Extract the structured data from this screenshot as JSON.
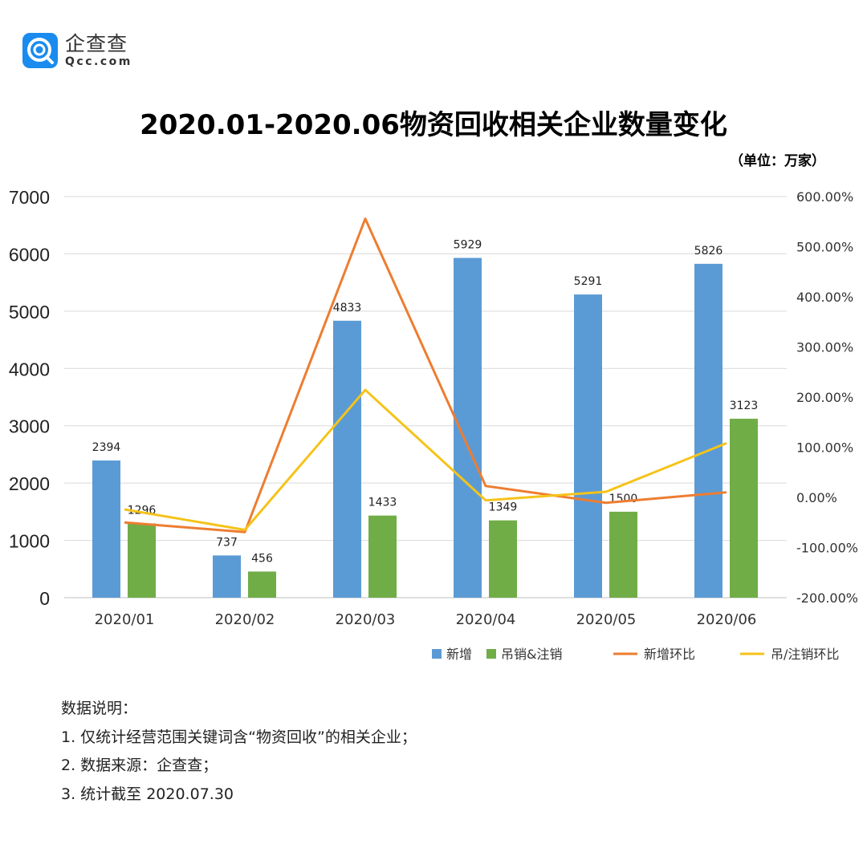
{
  "logo": {
    "cn": "企查查",
    "en": "Qcc.com",
    "color": "#1a8cf0"
  },
  "title": "2020.01-2020.06物资回收相关企业数量变化",
  "unit": "（单位：万家）",
  "chart_data": {
    "type": "bar",
    "title": "2020.01-2020.06物资回收相关企业数量变化",
    "categories": [
      "2020/01",
      "2020/02",
      "2020/03",
      "2020/04",
      "2020/05",
      "2020/06"
    ],
    "y_left": {
      "range": [
        0,
        7000
      ],
      "ticks": [
        "0",
        "1000",
        "2000",
        "3000",
        "4000",
        "5000",
        "6000",
        "7000"
      ]
    },
    "y_right": {
      "range": [
        -200,
        600
      ],
      "ticks": [
        "-200.00%",
        "-100.00%",
        "0.00%",
        "100.00%",
        "200.00%",
        "300.00%",
        "400.00%",
        "500.00%",
        "600.00%"
      ]
    },
    "grid": true,
    "legend_placement": "bottom-right",
    "series": [
      {
        "name": "新增",
        "type": "bar",
        "axis": "left",
        "color": "#5b9bd5",
        "values": [
          2394,
          737,
          4833,
          5929,
          5291,
          5826
        ]
      },
      {
        "name": "吊销&注销",
        "type": "bar",
        "axis": "left",
        "color": "#70ad47",
        "values": [
          1296,
          456,
          1433,
          1349,
          1500,
          3123
        ]
      },
      {
        "name": "新增环比",
        "type": "line",
        "axis": "right",
        "color": "#ed7d31",
        "values": [
          -50,
          -69.2,
          555.8,
          22.7,
          -10.8,
          10.1
        ]
      },
      {
        "name": "吊/注销环比",
        "type": "line",
        "axis": "right",
        "color": "#f5c31a",
        "values": [
          -24,
          -64.8,
          214.3,
          -5.9,
          11.2,
          108.2
        ]
      }
    ]
  },
  "notes": {
    "heading": "数据说明：",
    "items": [
      "1. 仅统计经营范围关键词含“物资回收”的相关企业；",
      "2. 数据来源：企查查；",
      "3. 统计截至 2020.07.30"
    ]
  }
}
